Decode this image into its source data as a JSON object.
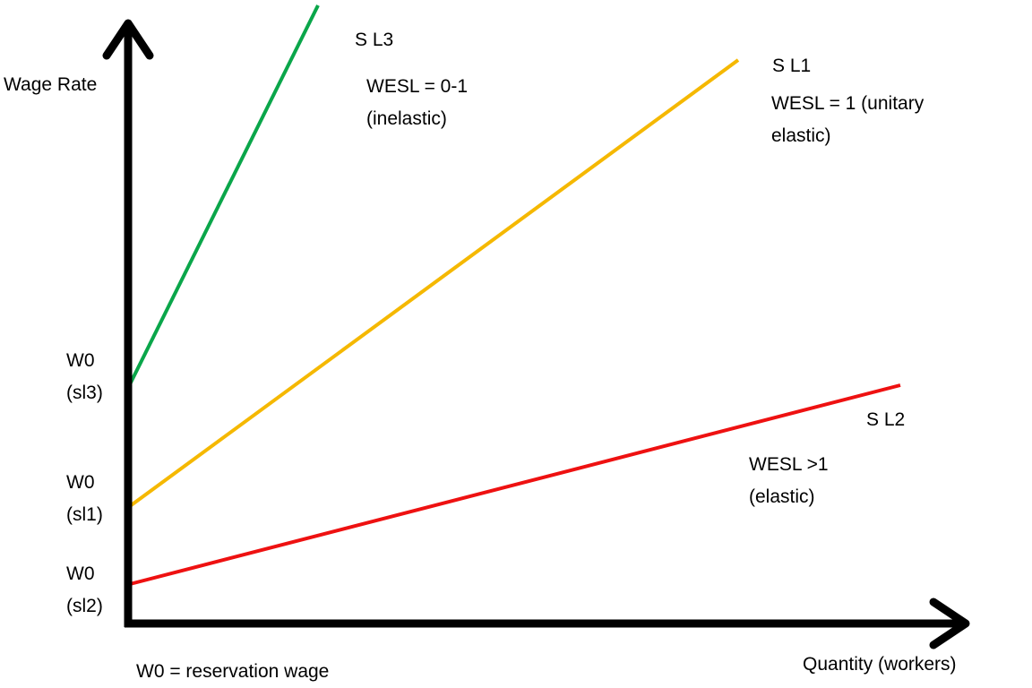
{
  "diagram": {
    "title": "",
    "axes": {
      "y_label": "Wage Rate",
      "x_label": "Quantity (workers)",
      "axis_color": "#000000"
    },
    "curves": [
      {
        "id": "sl3",
        "name": "S L3",
        "color": "#0aa64a",
        "description_lines": [
          "WESL = 0-1",
          "(inelastic)"
        ],
        "w0_lines": [
          "W0",
          "(sl3)"
        ]
      },
      {
        "id": "sl1",
        "name": "S L1",
        "color": "#f5b800",
        "description_lines": [
          "WESL = 1 (unitary",
          "elastic)"
        ],
        "w0_lines": [
          "W0",
          "(sl1)"
        ]
      },
      {
        "id": "sl2",
        "name": "S L2",
        "color": "#ee1111",
        "description_lines": [
          "WESL  >1",
          "(elastic)"
        ],
        "w0_lines": [
          "W0",
          "(sl2)"
        ]
      }
    ],
    "footnote": "W0 = reservation wage"
  }
}
